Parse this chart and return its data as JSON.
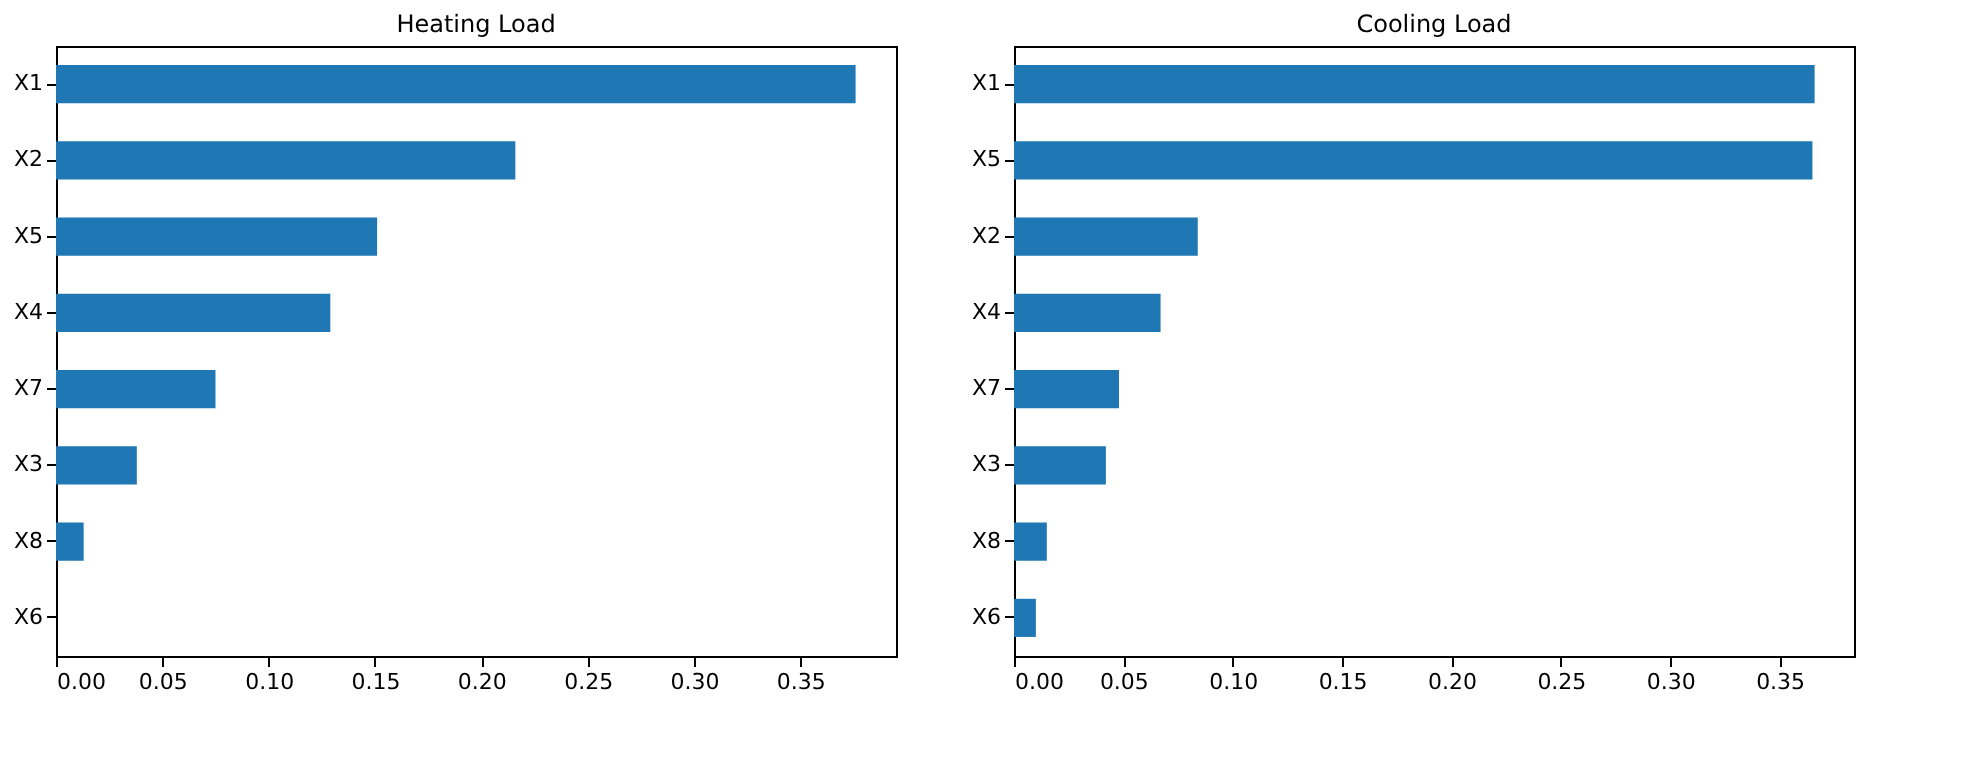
{
  "chart_data": [
    {
      "type": "bar",
      "orientation": "horizontal",
      "title": "Heating Load",
      "categories": [
        "X1",
        "X2",
        "X5",
        "X4",
        "X7",
        "X3",
        "X8",
        "X6"
      ],
      "values": [
        0.376,
        0.216,
        0.151,
        0.129,
        0.075,
        0.038,
        0.013,
        0.0
      ],
      "color": "#1f77b4",
      "xlim": [
        0,
        0.395
      ],
      "xticks": [
        {
          "value": 0,
          "label": "0.00"
        },
        {
          "value": 0.05,
          "label": "0.05"
        },
        {
          "value": 0.1,
          "label": "0.10"
        },
        {
          "value": 0.15,
          "label": "0.15"
        },
        {
          "value": 0.2,
          "label": "0.20"
        },
        {
          "value": 0.25,
          "label": "0.25"
        },
        {
          "value": 0.3,
          "label": "0.30"
        },
        {
          "value": 0.35,
          "label": "0.35"
        }
      ],
      "grid": false
    },
    {
      "type": "bar",
      "orientation": "horizontal",
      "title": "Cooling Load",
      "categories": [
        "X1",
        "X5",
        "X2",
        "X4",
        "X7",
        "X3",
        "X8",
        "X6"
      ],
      "values": [
        0.366,
        0.365,
        0.084,
        0.067,
        0.048,
        0.042,
        0.015,
        0.01
      ],
      "color": "#1f77b4",
      "xlim": [
        0,
        0.384
      ],
      "xticks": [
        {
          "value": 0,
          "label": "0.00"
        },
        {
          "value": 0.05,
          "label": "0.05"
        },
        {
          "value": 0.1,
          "label": "0.10"
        },
        {
          "value": 0.15,
          "label": "0.15"
        },
        {
          "value": 0.2,
          "label": "0.20"
        },
        {
          "value": 0.25,
          "label": "0.25"
        },
        {
          "value": 0.3,
          "label": "0.30"
        },
        {
          "value": 0.35,
          "label": "0.35"
        }
      ],
      "grid": false
    }
  ]
}
